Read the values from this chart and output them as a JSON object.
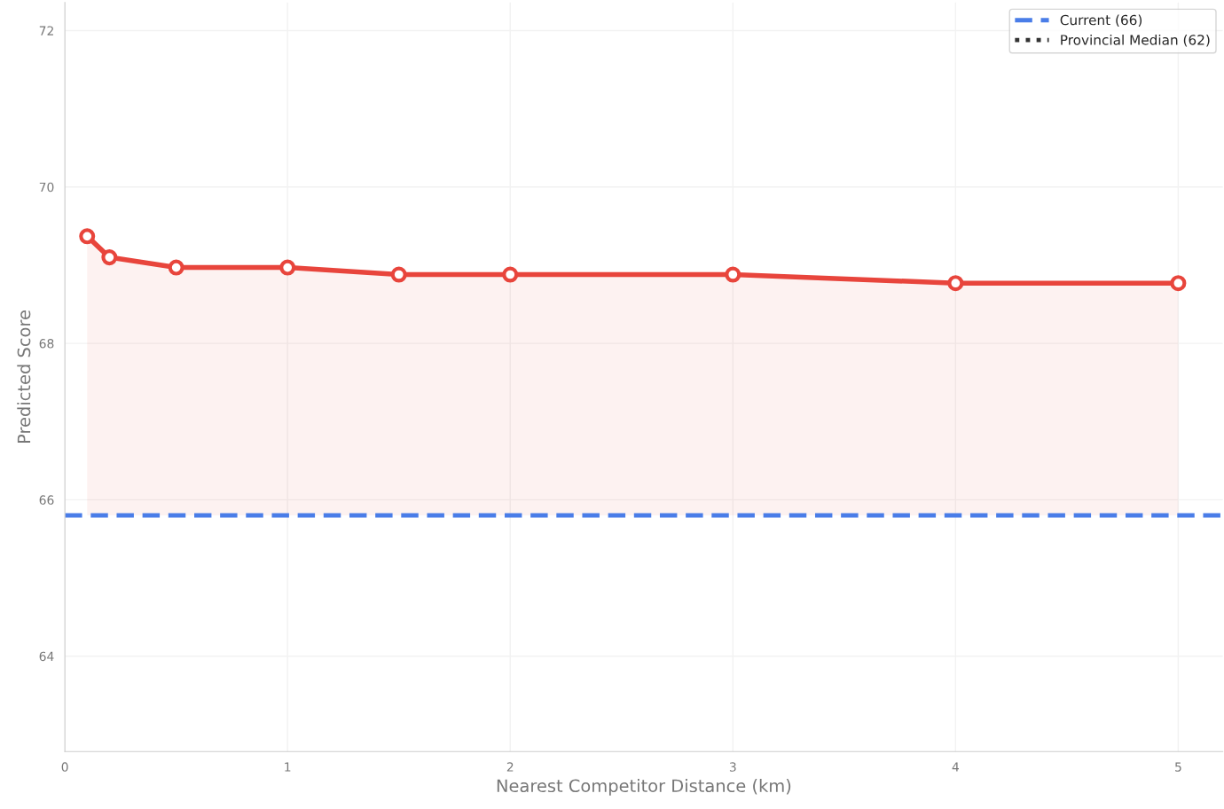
{
  "chart_data": {
    "type": "area",
    "xlabel": "Nearest Competitor Distance (km)",
    "ylabel": "Predicted Score",
    "series": [
      {
        "color": "#e8453c",
        "x": [
          0.1,
          0.2,
          0.5,
          1,
          1.5,
          2,
          3,
          4,
          5
        ],
        "values": [
          69.37,
          69.1,
          68.97,
          68.97,
          68.88,
          68.88,
          68.88,
          68.77,
          68.77
        ]
      }
    ],
    "marker": "circle",
    "line_style": "solid",
    "xlim": [
      0,
      5.2
    ],
    "xticks": [
      0,
      1,
      2,
      3,
      4,
      5
    ],
    "ylim": [
      62.78,
      72.36
    ],
    "yticks": [
      64,
      66,
      68,
      70,
      72
    ],
    "ref_lines": [
      {
        "axis": "y",
        "value": 65.8,
        "label": "Current (66)",
        "color": "#4a7de8",
        "line_style": "dashed"
      },
      {
        "axis": "y",
        "value": null,
        "label": "Provincial Median (62)",
        "color": "#333333",
        "line_style": "dotted"
      }
    ],
    "grid": true,
    "legend": "top right"
  }
}
